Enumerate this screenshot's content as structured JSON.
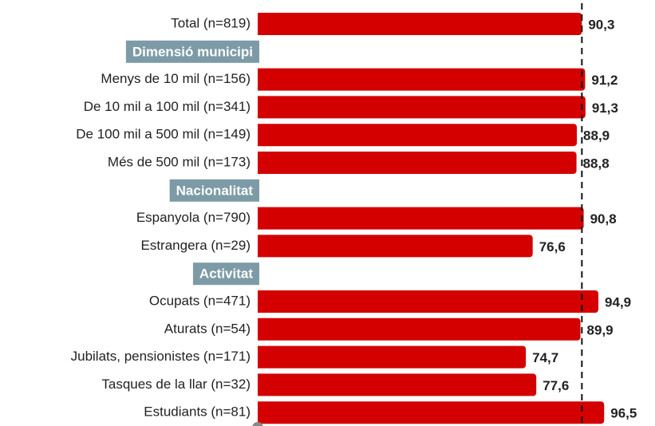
{
  "chart_data": {
    "type": "bar",
    "categories": [
      "Total (n=819)"
    ],
    "values": [
      90.3
    ],
    "value_labels": [
      "90,3"
    ],
    "groups": [
      {
        "name": "Dimensió municipi",
        "categories": [
          "Menys de 10 mil (n=156)",
          "De 10 mil a 100 mil (n=341)",
          "De 100 mil a 500 mil (n=149)",
          "Més de 500 mil (n=173)"
        ],
        "values": [
          91.2,
          91.3,
          88.9,
          88.8
        ],
        "value_labels": [
          "91,2",
          "91,3",
          "88,9",
          "88,8"
        ]
      },
      {
        "name": "Nacionalitat",
        "categories": [
          "Espanyola (n=790)",
          "Estrangera (n=29)"
        ],
        "values": [
          90.8,
          76.6
        ],
        "value_labels": [
          "90,8",
          "76,6"
        ]
      },
      {
        "name": "Activitat",
        "categories": [
          "Ocupats (n=471)",
          "Aturats (n=54)",
          "Jubilats, pensionistes (n=171)",
          "Tasques de la llar (n=32)",
          "Estudiants (n=81)"
        ],
        "values": [
          94.9,
          89.9,
          74.7,
          77.6,
          96.5
        ],
        "value_labels": [
          "94,9",
          "89,9",
          "74,7",
          "77,6",
          "96,5"
        ]
      }
    ],
    "color": "#d40000",
    "header_color": "#7d9ba7",
    "xlim": [
      0,
      110
    ],
    "reference_line": 90.3
  }
}
